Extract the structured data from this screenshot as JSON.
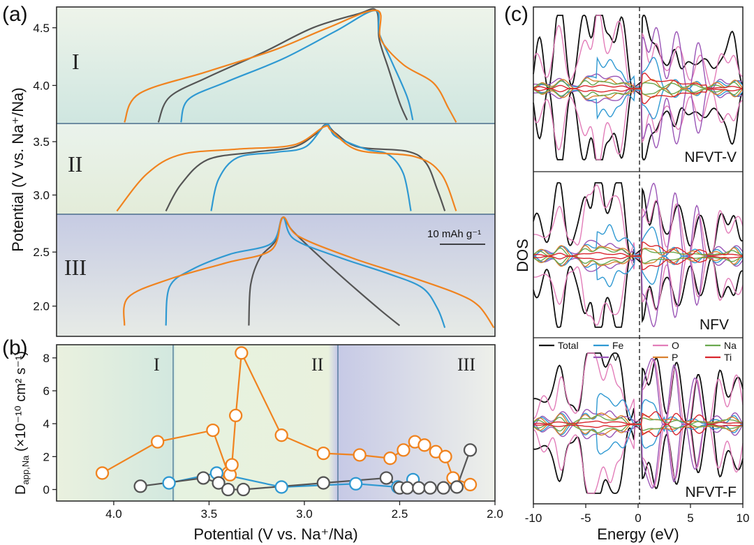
{
  "panel_labels": {
    "a": "(a)",
    "b": "(b)",
    "c": "(c)"
  },
  "colors": {
    "orange": "#f0831f",
    "blue": "#2f99d2",
    "gray": "#555555",
    "black": "#111111",
    "pink": "#e27db9",
    "purple": "#9a55b6",
    "green": "#6aa84f",
    "red": "#d9262e",
    "tan": "#d9802e"
  },
  "chart_data": [
    {
      "id": "a",
      "type": "line",
      "title": "",
      "ylabel": "Potential (V vs. Na⁺/Na)",
      "yticks": [
        "4.5",
        "4.0",
        "3.5",
        "3.0",
        "2.5",
        "2.0"
      ],
      "scale_bar_label": "10 mAh g⁻¹",
      "regions": [
        {
          "label": "I",
          "ylim": [
            3.67,
            4.68
          ],
          "lines": [
            {
              "color": "gray",
              "points": [
                [
                  0.27,
                  3.68
                ],
                [
                  0.3,
                  3.9
                ],
                [
                  0.4,
                  4.07
                ],
                [
                  0.55,
                  4.29
                ],
                [
                  0.68,
                  4.5
                ],
                [
                  0.8,
                  4.62
                ],
                [
                  0.848,
                  4.65
                ],
                [
                  0.856,
                  4.4
                ],
                [
                  0.88,
                  4.15
                ],
                [
                  0.91,
                  3.85
                ],
                [
                  0.93,
                  3.7
                ]
              ]
            },
            {
              "color": "blue",
              "points": [
                [
                  0.33,
                  3.68
                ],
                [
                  0.35,
                  3.88
                ],
                [
                  0.45,
                  4.03
                ],
                [
                  0.6,
                  4.23
                ],
                [
                  0.74,
                  4.47
                ],
                [
                  0.845,
                  4.65
                ],
                [
                  0.856,
                  4.45
                ],
                [
                  0.89,
                  4.2
                ],
                [
                  0.93,
                  3.9
                ],
                [
                  0.945,
                  3.7
                ]
              ]
            },
            {
              "color": "orange",
              "points": [
                [
                  0.18,
                  3.68
                ],
                [
                  0.22,
                  3.93
                ],
                [
                  0.4,
                  4.12
                ],
                [
                  0.58,
                  4.31
                ],
                [
                  0.72,
                  4.5
                ],
                [
                  0.85,
                  4.65
                ],
                [
                  0.86,
                  4.4
                ],
                [
                  0.92,
                  4.18
                ],
                [
                  1.0,
                  4.02
                ],
                [
                  1.04,
                  3.8
                ],
                [
                  1.06,
                  3.68
                ]
              ]
            }
          ]
        },
        {
          "label": "II",
          "ylim": [
            2.82,
            3.67
          ],
          "lines": [
            {
              "color": "gray",
              "points": [
                [
                  0.29,
                  2.85
                ],
                [
                  0.33,
                  3.1
                ],
                [
                  0.4,
                  3.33
                ],
                [
                  0.52,
                  3.4
                ],
                [
                  0.63,
                  3.45
                ],
                [
                  0.69,
                  3.58
                ],
                [
                  0.715,
                  3.66
                ],
                [
                  0.74,
                  3.58
                ],
                [
                  0.8,
                  3.45
                ],
                [
                  0.93,
                  3.41
                ],
                [
                  0.98,
                  3.3
                ],
                [
                  1.01,
                  3.05
                ],
                [
                  1.03,
                  2.85
                ]
              ]
            },
            {
              "color": "blue",
              "points": [
                [
                  0.41,
                  2.85
                ],
                [
                  0.43,
                  3.15
                ],
                [
                  0.48,
                  3.35
                ],
                [
                  0.58,
                  3.4
                ],
                [
                  0.66,
                  3.45
                ],
                [
                  0.715,
                  3.66
                ],
                [
                  0.74,
                  3.55
                ],
                [
                  0.82,
                  3.43
                ],
                [
                  0.88,
                  3.38
                ],
                [
                  0.92,
                  3.2
                ],
                [
                  0.94,
                  2.85
                ]
              ]
            },
            {
              "color": "orange",
              "points": [
                [
                  0.16,
                  2.85
                ],
                [
                  0.24,
                  3.2
                ],
                [
                  0.33,
                  3.38
                ],
                [
                  0.48,
                  3.43
                ],
                [
                  0.63,
                  3.47
                ],
                [
                  0.71,
                  3.64
                ],
                [
                  0.73,
                  3.6
                ],
                [
                  0.8,
                  3.42
                ],
                [
                  0.95,
                  3.36
                ],
                [
                  1.02,
                  3.2
                ],
                [
                  1.06,
                  2.85
                ]
              ]
            }
          ]
        },
        {
          "label": "III",
          "ylim": [
            1.72,
            2.85
          ],
          "lines": [
            {
              "color": "gray",
              "points": [
                [
                  0.51,
                  1.82
                ],
                [
                  0.515,
                  2.2
                ],
                [
                  0.54,
                  2.45
                ],
                [
                  0.58,
                  2.6
                ],
                [
                  0.6,
                  2.82
                ],
                [
                  0.625,
                  2.7
                ],
                [
                  0.7,
                  2.45
                ],
                [
                  0.78,
                  2.2
                ],
                [
                  0.86,
                  1.96
                ],
                [
                  0.91,
                  1.82
                ]
              ]
            },
            {
              "color": "blue",
              "points": [
                [
                  0.29,
                  1.82
                ],
                [
                  0.3,
                  2.18
                ],
                [
                  0.36,
                  2.34
                ],
                [
                  0.46,
                  2.48
                ],
                [
                  0.57,
                  2.58
                ],
                [
                  0.6,
                  2.82
                ],
                [
                  0.63,
                  2.62
                ],
                [
                  0.75,
                  2.45
                ],
                [
                  0.88,
                  2.3
                ],
                [
                  0.97,
                  2.17
                ],
                [
                  1.01,
                  1.98
                ],
                [
                  1.03,
                  1.8
                ]
              ]
            },
            {
              "color": "orange",
              "points": [
                [
                  0.18,
                  1.82
                ],
                [
                  0.19,
                  2.08
                ],
                [
                  0.3,
                  2.25
                ],
                [
                  0.45,
                  2.4
                ],
                [
                  0.57,
                  2.52
                ],
                [
                  0.6,
                  2.82
                ],
                [
                  0.64,
                  2.65
                ],
                [
                  0.78,
                  2.45
                ],
                [
                  0.93,
                  2.28
                ],
                [
                  1.06,
                  2.12
                ],
                [
                  1.12,
                  2.0
                ],
                [
                  1.16,
                  1.8
                ]
              ]
            }
          ]
        }
      ]
    },
    {
      "id": "b",
      "type": "scatter",
      "title": "",
      "xlabel": "Potential (V vs. Na⁺/Na)",
      "ylabel_main": "D",
      "ylabel_sub": "app,Na",
      "ylabel_rest": " (×10⁻¹⁰ cm² s⁻¹)",
      "xlim": [
        4.3,
        2.0
      ],
      "ylim": [
        -0.7,
        8.8
      ],
      "xticks": [
        "4.0",
        "3.5",
        "3.0",
        "2.5",
        "2.0"
      ],
      "yticks": [
        "0",
        "2",
        "4",
        "6",
        "8"
      ],
      "region_labels": [
        "I",
        "II",
        "III"
      ],
      "region_boundaries": [
        3.66,
        2.81
      ],
      "series": [
        {
          "name": "orange",
          "color": "orange",
          "x": [
            4.06,
            3.77,
            3.48,
            3.4,
            3.39,
            3.38,
            3.36,
            3.33,
            3.12,
            2.9,
            2.71,
            2.55,
            2.48,
            2.42,
            2.37,
            2.31,
            2.26,
            2.22,
            2.13
          ],
          "y": [
            1.0,
            2.9,
            3.6,
            1.0,
            0.9,
            1.5,
            4.5,
            8.3,
            3.3,
            2.2,
            2.1,
            1.9,
            2.4,
            2.9,
            2.7,
            2.3,
            2.0,
            0.7,
            0.3
          ]
        },
        {
          "name": "blue",
          "color": "blue",
          "x": [
            3.71,
            3.46,
            3.12,
            2.73,
            2.51,
            2.43
          ],
          "y": [
            0.4,
            1.0,
            0.15,
            0.35,
            0.15,
            0.6
          ]
        },
        {
          "name": "gray",
          "color": "gray",
          "x": [
            3.86,
            3.53,
            3.45,
            3.4,
            3.32,
            2.9,
            2.57,
            2.5,
            2.46,
            2.4,
            2.34,
            2.27,
            2.2,
            2.13
          ],
          "y": [
            0.2,
            0.7,
            0.4,
            0.0,
            0.0,
            0.4,
            0.7,
            0.1,
            0.1,
            0.1,
            0.1,
            0.1,
            0.15,
            2.4
          ]
        }
      ]
    },
    {
      "id": "c",
      "type": "line",
      "title": "",
      "xlabel": "Energy (eV)",
      "ylabel": "DOS",
      "xlim": [
        -10,
        10
      ],
      "xticks": [
        "-10",
        "-5",
        "0",
        "5",
        "10"
      ],
      "subpanels": [
        "NFVT-V",
        "NFV",
        "NFVT-F"
      ],
      "legend": [
        {
          "label": "Total",
          "color": "black"
        },
        {
          "label": "Fe",
          "color": "blue"
        },
        {
          "label": "V",
          "color": "purple"
        },
        {
          "label": "O",
          "color": "pink"
        },
        {
          "label": "P",
          "color": "tan"
        },
        {
          "label": "Na",
          "color": "green"
        },
        {
          "label": "Ti",
          "color": "red"
        }
      ],
      "peaks_ev": [
        -9.3,
        -7.4,
        -5.0,
        -3.8,
        -2.7,
        -1.6,
        0.5,
        1.6,
        3.5,
        5.6,
        7.7,
        9.2
      ]
    }
  ]
}
